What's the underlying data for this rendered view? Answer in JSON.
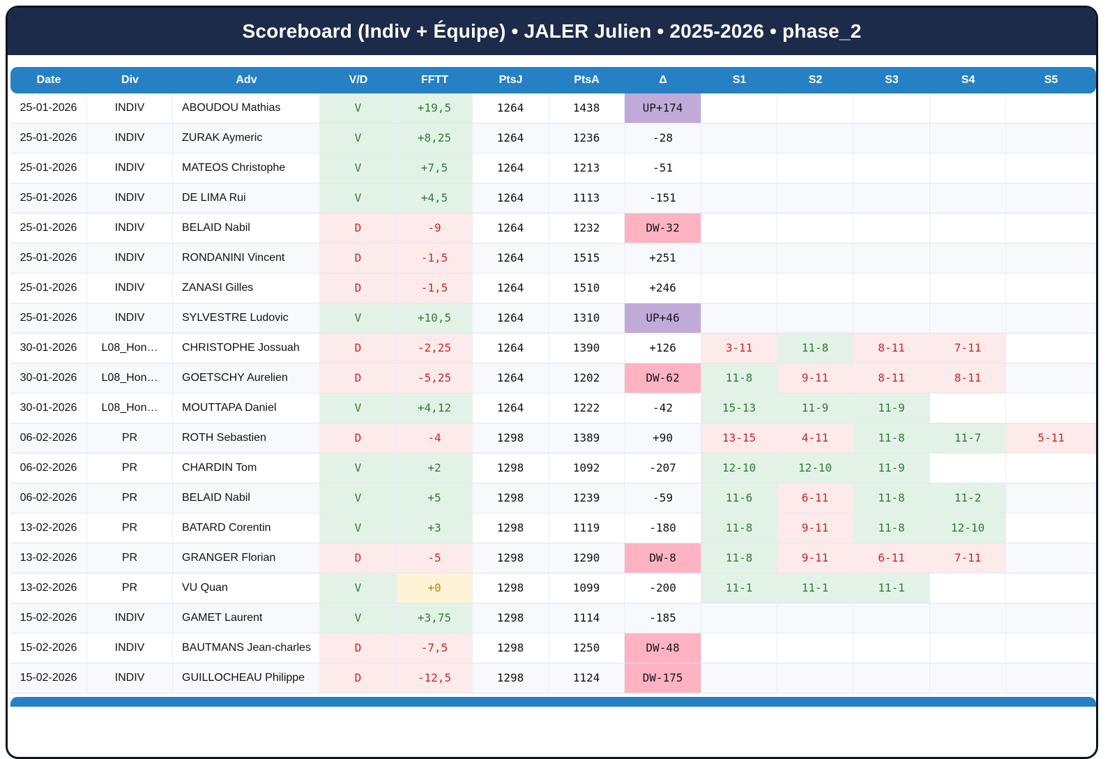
{
  "title": "Scoreboard (Indiv + Équipe) • JALER Julien • 2025-2026 • phase_2",
  "columns": [
    {
      "key": "date",
      "label": "Date"
    },
    {
      "key": "div",
      "label": "Div"
    },
    {
      "key": "adv",
      "label": "Adv"
    },
    {
      "key": "vd",
      "label": "V/D"
    },
    {
      "key": "fftt",
      "label": "FFTT"
    },
    {
      "key": "ptsj",
      "label": "PtsJ"
    },
    {
      "key": "ptsa",
      "label": "PtsA"
    },
    {
      "key": "delta",
      "label": "Δ"
    },
    {
      "key": "s1",
      "label": "S1"
    },
    {
      "key": "s2",
      "label": "S2"
    },
    {
      "key": "s3",
      "label": "S3"
    },
    {
      "key": "s4",
      "label": "S4"
    },
    {
      "key": "s5",
      "label": "S5"
    }
  ],
  "colors": {
    "frame": "#0c1526",
    "titlebar": "#1c2b4a",
    "table_header_blue": "#2581c4",
    "win_bg": "#e3f2e6",
    "win_text": "#2e7d32",
    "loss_bg": "#fdeaea",
    "loss_text": "#c62828",
    "zero_bg": "#fff3d6",
    "zero_text": "#bf7d00",
    "up_bg": "#c2aad8",
    "down_bg": "#ffb3c2"
  },
  "rows": [
    {
      "date": "25-01-2026",
      "div": "INDIV",
      "adv": "ABOUDOU Mathias",
      "vd": "V",
      "result": "win",
      "fftt": "+19,5",
      "fftt_tone": "win",
      "ptsj": "1264",
      "ptsa": "1438",
      "delta": "UP+174",
      "delta_style": "up",
      "sets": []
    },
    {
      "date": "25-01-2026",
      "div": "INDIV",
      "adv": "ZURAK Aymeric",
      "vd": "V",
      "result": "win",
      "fftt": "+8,25",
      "fftt_tone": "win",
      "ptsj": "1264",
      "ptsa": "1236",
      "delta": "-28",
      "delta_style": "plain",
      "sets": []
    },
    {
      "date": "25-01-2026",
      "div": "INDIV",
      "adv": "MATEOS Christophe",
      "vd": "V",
      "result": "win",
      "fftt": "+7,5",
      "fftt_tone": "win",
      "ptsj": "1264",
      "ptsa": "1213",
      "delta": "-51",
      "delta_style": "plain",
      "sets": []
    },
    {
      "date": "25-01-2026",
      "div": "INDIV",
      "adv": "DE LIMA Rui",
      "vd": "V",
      "result": "win",
      "fftt": "+4,5",
      "fftt_tone": "win",
      "ptsj": "1264",
      "ptsa": "1113",
      "delta": "-151",
      "delta_style": "plain",
      "sets": []
    },
    {
      "date": "25-01-2026",
      "div": "INDIV",
      "adv": "BELAID Nabil",
      "vd": "D",
      "result": "loss",
      "fftt": "-9",
      "fftt_tone": "loss",
      "ptsj": "1264",
      "ptsa": "1232",
      "delta": "DW-32",
      "delta_style": "down",
      "sets": []
    },
    {
      "date": "25-01-2026",
      "div": "INDIV",
      "adv": "RONDANINI Vincent",
      "vd": "D",
      "result": "loss",
      "fftt": "-1,5",
      "fftt_tone": "loss",
      "ptsj": "1264",
      "ptsa": "1515",
      "delta": "+251",
      "delta_style": "plain",
      "sets": []
    },
    {
      "date": "25-01-2026",
      "div": "INDIV",
      "adv": "ZANASI Gilles",
      "vd": "D",
      "result": "loss",
      "fftt": "-1,5",
      "fftt_tone": "loss",
      "ptsj": "1264",
      "ptsa": "1510",
      "delta": "+246",
      "delta_style": "plain",
      "sets": []
    },
    {
      "date": "25-01-2026",
      "div": "INDIV",
      "adv": "SYLVESTRE Ludovic",
      "vd": "V",
      "result": "win",
      "fftt": "+10,5",
      "fftt_tone": "win",
      "ptsj": "1264",
      "ptsa": "1310",
      "delta": "UP+46",
      "delta_style": "up",
      "sets": []
    },
    {
      "date": "30-01-2026",
      "div": "L08_Hon…",
      "adv": "CHRISTOPHE Jossuah",
      "vd": "D",
      "result": "loss",
      "fftt": "-2,25",
      "fftt_tone": "loss",
      "ptsj": "1264",
      "ptsa": "1390",
      "delta": "+126",
      "delta_style": "plain",
      "sets": [
        {
          "v": "3-11",
          "t": "l"
        },
        {
          "v": "11-8",
          "t": "w"
        },
        {
          "v": "8-11",
          "t": "l"
        },
        {
          "v": "7-11",
          "t": "l"
        }
      ]
    },
    {
      "date": "30-01-2026",
      "div": "L08_Hon…",
      "adv": "GOETSCHY Aurelien",
      "vd": "D",
      "result": "loss",
      "fftt": "-5,25",
      "fftt_tone": "loss",
      "ptsj": "1264",
      "ptsa": "1202",
      "delta": "DW-62",
      "delta_style": "down",
      "sets": [
        {
          "v": "11-8",
          "t": "w"
        },
        {
          "v": "9-11",
          "t": "l"
        },
        {
          "v": "8-11",
          "t": "l"
        },
        {
          "v": "8-11",
          "t": "l"
        }
      ]
    },
    {
      "date": "30-01-2026",
      "div": "L08_Hon…",
      "adv": "MOUTTAPA Daniel",
      "vd": "V",
      "result": "win",
      "fftt": "+4,12",
      "fftt_tone": "win",
      "ptsj": "1264",
      "ptsa": "1222",
      "delta": "-42",
      "delta_style": "plain",
      "sets": [
        {
          "v": "15-13",
          "t": "w"
        },
        {
          "v": "11-9",
          "t": "w"
        },
        {
          "v": "11-9",
          "t": "w"
        }
      ]
    },
    {
      "date": "06-02-2026",
      "div": "PR",
      "adv": "ROTH Sebastien",
      "vd": "D",
      "result": "loss",
      "fftt": "-4",
      "fftt_tone": "loss",
      "ptsj": "1298",
      "ptsa": "1389",
      "delta": "+90",
      "delta_style": "plain",
      "sets": [
        {
          "v": "13-15",
          "t": "l"
        },
        {
          "v": "4-11",
          "t": "l"
        },
        {
          "v": "11-8",
          "t": "w"
        },
        {
          "v": "11-7",
          "t": "w"
        },
        {
          "v": "5-11",
          "t": "l"
        }
      ]
    },
    {
      "date": "06-02-2026",
      "div": "PR",
      "adv": "CHARDIN Tom",
      "vd": "V",
      "result": "win",
      "fftt": "+2",
      "fftt_tone": "win",
      "ptsj": "1298",
      "ptsa": "1092",
      "delta": "-207",
      "delta_style": "plain",
      "sets": [
        {
          "v": "12-10",
          "t": "w"
        },
        {
          "v": "12-10",
          "t": "w"
        },
        {
          "v": "11-9",
          "t": "w"
        }
      ]
    },
    {
      "date": "06-02-2026",
      "div": "PR",
      "adv": "BELAID Nabil",
      "vd": "V",
      "result": "win",
      "fftt": "+5",
      "fftt_tone": "win",
      "ptsj": "1298",
      "ptsa": "1239",
      "delta": "-59",
      "delta_style": "plain",
      "sets": [
        {
          "v": "11-6",
          "t": "w"
        },
        {
          "v": "6-11",
          "t": "l"
        },
        {
          "v": "11-8",
          "t": "w"
        },
        {
          "v": "11-2",
          "t": "w"
        }
      ]
    },
    {
      "date": "13-02-2026",
      "div": "PR",
      "adv": "BATARD Corentin",
      "vd": "V",
      "result": "win",
      "fftt": "+3",
      "fftt_tone": "win",
      "ptsj": "1298",
      "ptsa": "1119",
      "delta": "-180",
      "delta_style": "plain",
      "sets": [
        {
          "v": "11-8",
          "t": "w"
        },
        {
          "v": "9-11",
          "t": "l"
        },
        {
          "v": "11-8",
          "t": "w"
        },
        {
          "v": "12-10",
          "t": "w"
        }
      ]
    },
    {
      "date": "13-02-2026",
      "div": "PR",
      "adv": "GRANGER Florian",
      "vd": "D",
      "result": "loss",
      "fftt": "-5",
      "fftt_tone": "loss",
      "ptsj": "1298",
      "ptsa": "1290",
      "delta": "DW-8",
      "delta_style": "down",
      "sets": [
        {
          "v": "11-8",
          "t": "w"
        },
        {
          "v": "9-11",
          "t": "l"
        },
        {
          "v": "6-11",
          "t": "l"
        },
        {
          "v": "7-11",
          "t": "l"
        }
      ]
    },
    {
      "date": "13-02-2026",
      "div": "PR",
      "adv": "VU Quan",
      "vd": "V",
      "result": "win",
      "fftt": "+0",
      "fftt_tone": "zero",
      "ptsj": "1298",
      "ptsa": "1099",
      "delta": "-200",
      "delta_style": "plain",
      "sets": [
        {
          "v": "11-1",
          "t": "w"
        },
        {
          "v": "11-1",
          "t": "w"
        },
        {
          "v": "11-1",
          "t": "w"
        }
      ]
    },
    {
      "date": "15-02-2026",
      "div": "INDIV",
      "adv": "GAMET Laurent",
      "vd": "V",
      "result": "win",
      "fftt": "+3,75",
      "fftt_tone": "win",
      "ptsj": "1298",
      "ptsa": "1114",
      "delta": "-185",
      "delta_style": "plain",
      "sets": []
    },
    {
      "date": "15-02-2026",
      "div": "INDIV",
      "adv": "BAUTMANS Jean-charles",
      "vd": "D",
      "result": "loss",
      "fftt": "-7,5",
      "fftt_tone": "loss",
      "ptsj": "1298",
      "ptsa": "1250",
      "delta": "DW-48",
      "delta_style": "down",
      "sets": []
    },
    {
      "date": "15-02-2026",
      "div": "INDIV",
      "adv": "GUILLOCHEAU Philippe",
      "vd": "D",
      "result": "loss",
      "fftt": "-12,5",
      "fftt_tone": "loss",
      "ptsj": "1298",
      "ptsa": "1124",
      "delta": "DW-175",
      "delta_style": "down",
      "sets": []
    }
  ]
}
